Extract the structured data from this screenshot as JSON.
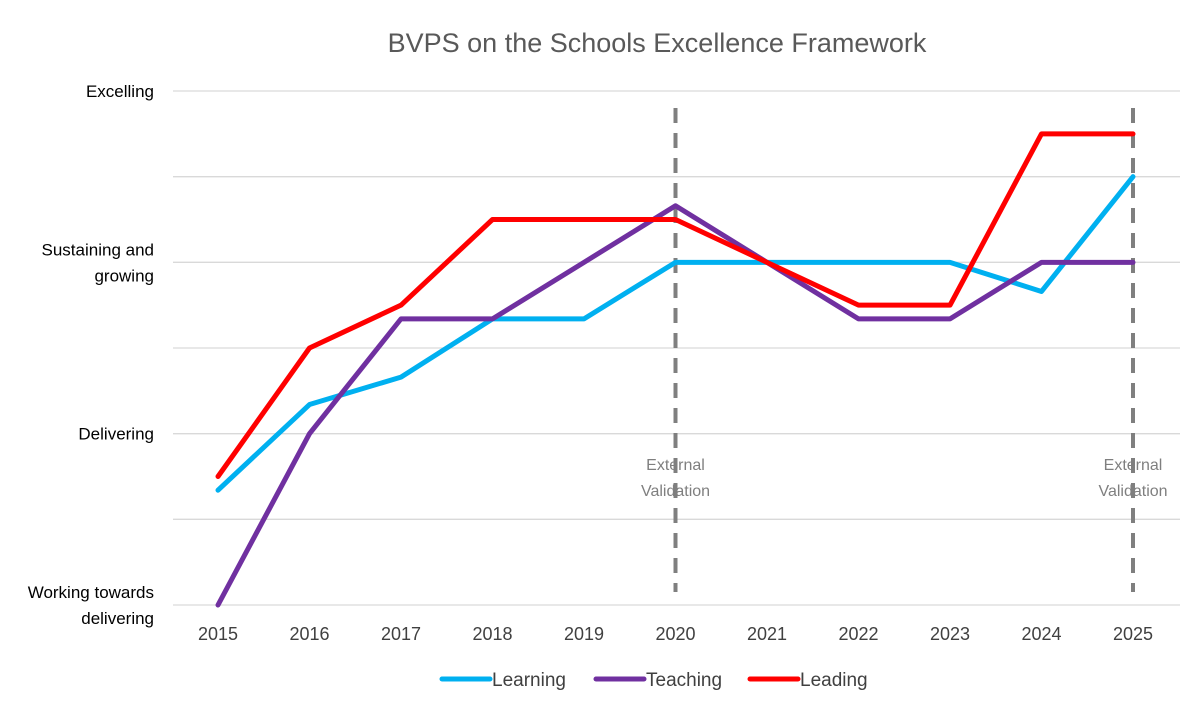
{
  "chart_data": {
    "type": "line",
    "title": "BVPS on the Schools Excellence Framework",
    "xlabel": "",
    "ylabel": "",
    "categories": [
      "2015",
      "2016",
      "2017",
      "2018",
      "2019",
      "2020",
      "2021",
      "2022",
      "2023",
      "2024",
      "2025"
    ],
    "ylim": [
      1,
      4
    ],
    "ygrid_step": 0.5,
    "grid": true,
    "y_tick_labels": [
      {
        "value": 1,
        "lines": [
          "Working towards",
          "delivering"
        ]
      },
      {
        "value": 2,
        "lines": [
          "Delivering"
        ]
      },
      {
        "value": 3,
        "lines": [
          "Sustaining and",
          "growing"
        ]
      },
      {
        "value": 4,
        "lines": [
          "Excelling"
        ]
      }
    ],
    "series": [
      {
        "name": "Learning",
        "color": "#00B0F0",
        "values": [
          1.67,
          2.17,
          2.33,
          2.67,
          2.67,
          3,
          3,
          3,
          3,
          2.83,
          3.5
        ]
      },
      {
        "name": "Teaching",
        "color": "#7030A0",
        "values": [
          1,
          2,
          2.67,
          2.67,
          3,
          3.33,
          3,
          2.67,
          2.67,
          3,
          3
        ]
      },
      {
        "name": "Leading",
        "color": "#FF0000",
        "values": [
          1.75,
          2.5,
          2.75,
          3.25,
          3.25,
          3.25,
          3,
          2.75,
          2.75,
          3.75,
          3.75
        ]
      }
    ],
    "annotations": [
      {
        "x": "2020",
        "lines": [
          "External",
          "Validation"
        ]
      },
      {
        "x": "2025",
        "lines": [
          "External",
          "Validation"
        ]
      }
    ],
    "legend_position": "bottom"
  }
}
